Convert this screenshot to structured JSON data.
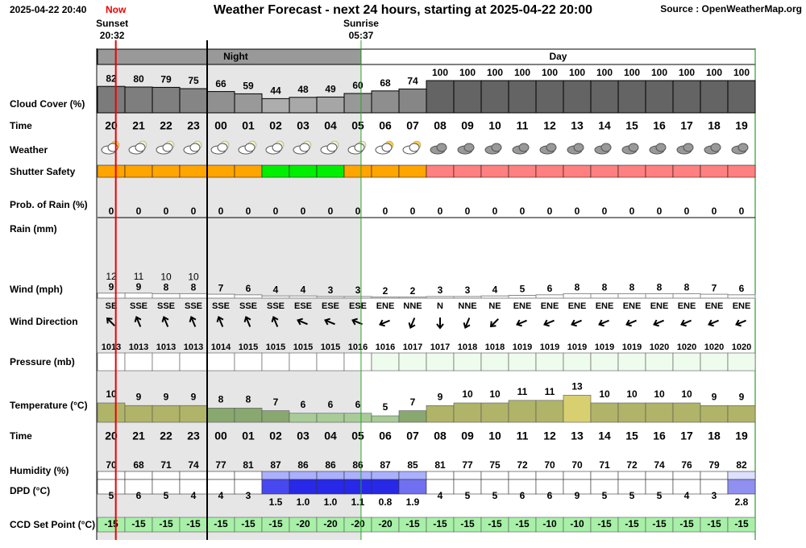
{
  "header": {
    "timestamp": "2025-04-22 20:40",
    "now": "Now",
    "title": "Weather Forecast - next 24 hours, starting at 2025-04-22 20:00",
    "source": "Source : OpenWeatherMap.org",
    "sunset": "Sunset",
    "sunset_time": "20:32",
    "sunrise": "Sunrise",
    "sunrise_time": "05:37",
    "night": "Night",
    "day": "Day"
  },
  "rows": {
    "cloud_cover": "Cloud Cover (%)",
    "time": "Time",
    "weather": "Weather",
    "shutter_safety": "Shutter Safety",
    "prob_rain": "Prob. of Rain (%)",
    "rain": "Rain (mm)",
    "wind": "Wind (mph)",
    "wind_direction": "Wind Direction",
    "pressure": "Pressure (mb)",
    "temperature": "Temperature (°C)",
    "humidity": "Humidity (%)",
    "dpd": "DPD (°C)",
    "ccd_set_point": "CCD Set Point (°C)"
  },
  "hours": [
    "20",
    "21",
    "22",
    "23",
    "00",
    "01",
    "02",
    "03",
    "04",
    "05",
    "06",
    "07",
    "08",
    "09",
    "10",
    "11",
    "12",
    "13",
    "14",
    "15",
    "16",
    "17",
    "18",
    "19"
  ],
  "cloud_cover": [
    82,
    80,
    79,
    75,
    66,
    59,
    44,
    48,
    49,
    60,
    68,
    74,
    100,
    100,
    100,
    100,
    100,
    100,
    100,
    100,
    100,
    100,
    100,
    100
  ],
  "shutter_safety": [
    "#ffa500",
    "#ffa500",
    "#ffa500",
    "#ffa500",
    "#ffa500",
    "#ffa500",
    "#00ee00",
    "#00ee00",
    "#00ee00",
    "#ffa500",
    "#ffa500",
    "#ffa500",
    "#ff8080",
    "#ff8080",
    "#ff8080",
    "#ff8080",
    "#ff8080",
    "#ff8080",
    "#ff8080",
    "#ff8080",
    "#ff8080",
    "#ff8080",
    "#ff8080",
    "#ff8080"
  ],
  "prob_rain": [
    0,
    0,
    0,
    0,
    0,
    0,
    0,
    0,
    0,
    0,
    0,
    0,
    0,
    0,
    0,
    0,
    0,
    0,
    0,
    0,
    0,
    0,
    0,
    0
  ],
  "wind_gust": [
    12,
    11,
    10,
    10,
    null,
    null,
    null,
    null,
    null,
    null,
    null,
    null,
    null,
    null,
    null,
    null,
    null,
    null,
    null,
    null,
    null,
    null,
    null,
    null
  ],
  "wind_speed": [
    9,
    9,
    8,
    8,
    7,
    6,
    4,
    4,
    3,
    3,
    2,
    2,
    3,
    3,
    4,
    5,
    6,
    8,
    8,
    8,
    8,
    8,
    7,
    6
  ],
  "wind_direction": [
    "SE",
    "SSE",
    "SSE",
    "SSE",
    "SSE",
    "SSE",
    "SSE",
    "ESE",
    "ESE",
    "ESE",
    "ENE",
    "NNE",
    "N",
    "NNE",
    "NE",
    "ENE",
    "ENE",
    "ENE",
    "ENE",
    "ENE",
    "ENE",
    "ENE",
    "ENE",
    "ENE"
  ],
  "pressure": [
    1013,
    1013,
    1013,
    1013,
    1014,
    1015,
    1015,
    1015,
    1015,
    1016,
    1016,
    1017,
    1017,
    1018,
    1018,
    1019,
    1019,
    1019,
    1019,
    1019,
    1020,
    1020,
    1020,
    1020
  ],
  "temperature": [
    10,
    9,
    9,
    9,
    8,
    8,
    7,
    6,
    6,
    6,
    5,
    7,
    9,
    10,
    10,
    11,
    11,
    13,
    10,
    10,
    10,
    10,
    9,
    9
  ],
  "humidity": [
    70,
    68,
    71,
    74,
    77,
    81,
    87,
    86,
    86,
    86,
    87,
    85,
    81,
    77,
    75,
    72,
    70,
    70,
    71,
    72,
    74,
    76,
    79,
    82
  ],
  "dpd": {
    "values": [
      5,
      6,
      5,
      4,
      4,
      3,
      1.5,
      1.0,
      1.0,
      1.1,
      0.8,
      1.9,
      4,
      5,
      5,
      6,
      6,
      9,
      5,
      5,
      5,
      4,
      3,
      2.8
    ],
    "value_labels": [
      "5",
      "6",
      "5",
      "4",
      "4",
      "3",
      "1.5",
      "1.0",
      "1.0",
      "1.1",
      "0.8",
      "1.9",
      "4",
      "5",
      "5",
      "6",
      "6",
      "9",
      "5",
      "5",
      "5",
      "4",
      "3",
      "2.8"
    ]
  },
  "ccd_set_point": [
    -15,
    -15,
    -15,
    -15,
    -15,
    -15,
    -15,
    -20,
    -20,
    -20,
    -20,
    -15,
    -15,
    -15,
    -15,
    -15,
    -10,
    -10,
    -15,
    -15,
    -15,
    -15,
    -15,
    -15
  ]
}
